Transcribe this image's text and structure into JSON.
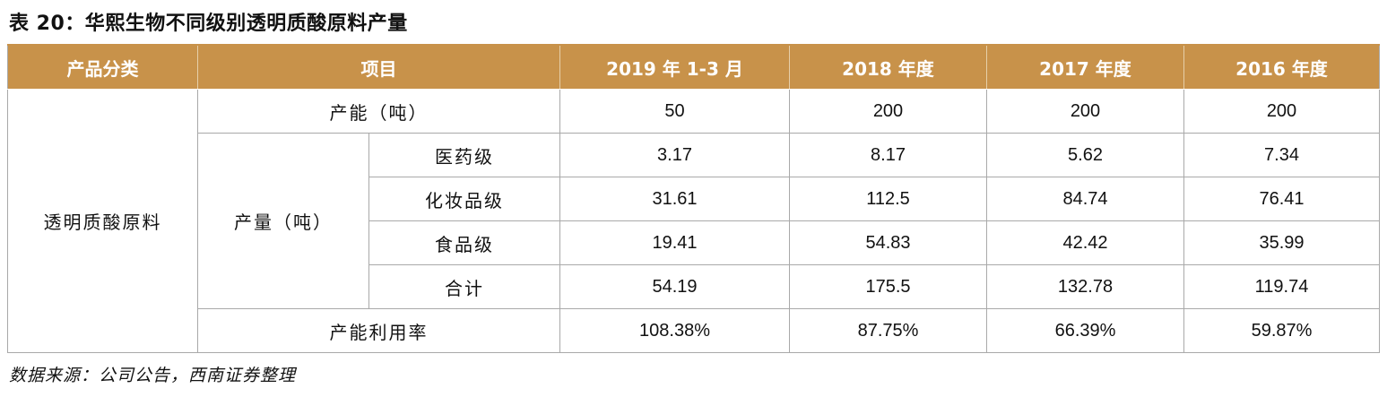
{
  "title": "表 20：华熙生物不同级别透明质酸原料产量",
  "table": {
    "headers": [
      "产品分类",
      "项目",
      "2019 年 1-3 月",
      "2018 年度",
      "2017 年度",
      "2016 年度"
    ],
    "category": "透明质酸原料",
    "capacity_label": "产能（吨）",
    "capacity_values": [
      "50",
      "200",
      "200",
      "200"
    ],
    "output_label": "产量（吨）",
    "output_rows": [
      {
        "label": "医药级",
        "values": [
          "3.17",
          "8.17",
          "5.62",
          "7.34"
        ]
      },
      {
        "label": "化妆品级",
        "values": [
          "31.61",
          "112.5",
          "84.74",
          "76.41"
        ]
      },
      {
        "label": "食品级",
        "values": [
          "19.41",
          "54.83",
          "42.42",
          "35.99"
        ]
      },
      {
        "label": "合计",
        "values": [
          "54.19",
          "175.5",
          "132.78",
          "119.74"
        ]
      }
    ],
    "utilization_label": "产能利用率",
    "utilization_values": [
      "108.38%",
      "87.75%",
      "66.39%",
      "59.87%"
    ]
  },
  "source": "数据来源：公司公告，西南证券整理"
}
